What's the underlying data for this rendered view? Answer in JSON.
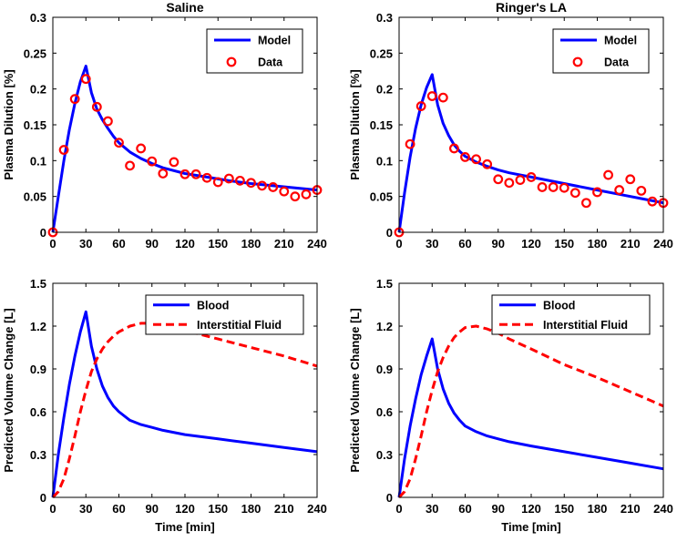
{
  "chart_data": [
    {
      "type": "line",
      "title": "Saline",
      "xlabel": "",
      "ylabel": "Plasma Dilution [%]",
      "xlim": [
        0,
        240
      ],
      "ylim": [
        0,
        0.3
      ],
      "xticks": [
        0,
        30,
        60,
        90,
        120,
        150,
        180,
        210,
        240
      ],
      "xtick_labels": [
        "0",
        "30",
        "60",
        "90",
        "120",
        "150",
        "180",
        "210",
        "240"
      ],
      "yticks": [
        0,
        0.05,
        0.1,
        0.15,
        0.2,
        0.25,
        0.3
      ],
      "ytick_labels": [
        "0",
        "0.05",
        "0.1",
        "0.15",
        "0.2",
        "0.25",
        "0.3"
      ],
      "legend_position": "top-right",
      "series": [
        {
          "name": "Model",
          "style": "line",
          "color": "#0000ff",
          "x": [
            0,
            5,
            10,
            15,
            20,
            25,
            30,
            35,
            40,
            45,
            50,
            55,
            60,
            70,
            80,
            90,
            100,
            120,
            140,
            160,
            180,
            200,
            220,
            240
          ],
          "y": [
            0,
            0.05,
            0.1,
            0.143,
            0.18,
            0.21,
            0.232,
            0.195,
            0.172,
            0.157,
            0.145,
            0.134,
            0.125,
            0.112,
            0.103,
            0.096,
            0.09,
            0.082,
            0.077,
            0.072,
            0.068,
            0.065,
            0.062,
            0.059
          ]
        },
        {
          "name": "Data",
          "style": "markers",
          "color": "#ff0000",
          "x": [
            0,
            10,
            20,
            30,
            40,
            50,
            60,
            70,
            80,
            90,
            100,
            110,
            120,
            130,
            140,
            150,
            160,
            170,
            180,
            190,
            200,
            210,
            220,
            230,
            240
          ],
          "y": [
            0,
            0.115,
            0.186,
            0.214,
            0.175,
            0.155,
            0.125,
            0.093,
            0.117,
            0.099,
            0.082,
            0.098,
            0.081,
            0.081,
            0.076,
            0.07,
            0.075,
            0.072,
            0.069,
            0.065,
            0.063,
            0.057,
            0.05,
            0.053,
            0.059
          ]
        }
      ]
    },
    {
      "type": "line",
      "title": "Ringer's LA",
      "xlabel": "",
      "ylabel": "Plasma Dilution [%]",
      "xlim": [
        0,
        240
      ],
      "ylim": [
        0,
        0.3
      ],
      "xticks": [
        0,
        30,
        60,
        90,
        120,
        150,
        180,
        210,
        240
      ],
      "xtick_labels": [
        "0",
        "30",
        "60",
        "90",
        "120",
        "150",
        "180",
        "210",
        "240"
      ],
      "yticks": [
        0,
        0.05,
        0.1,
        0.15,
        0.2,
        0.25,
        0.3
      ],
      "ytick_labels": [
        "0",
        "0.05",
        "0.1",
        "0.15",
        "0.2",
        "0.25",
        "0.3"
      ],
      "legend_position": "top-right",
      "series": [
        {
          "name": "Model",
          "style": "line",
          "color": "#0000ff",
          "x": [
            0,
            5,
            10,
            15,
            20,
            25,
            30,
            35,
            40,
            45,
            50,
            55,
            60,
            70,
            80,
            90,
            100,
            120,
            140,
            160,
            180,
            200,
            220,
            240
          ],
          "y": [
            0,
            0.055,
            0.105,
            0.145,
            0.178,
            0.202,
            0.22,
            0.178,
            0.152,
            0.135,
            0.122,
            0.113,
            0.106,
            0.098,
            0.092,
            0.087,
            0.083,
            0.077,
            0.071,
            0.065,
            0.059,
            0.053,
            0.047,
            0.041
          ]
        },
        {
          "name": "Data",
          "style": "markers",
          "color": "#ff0000",
          "x": [
            0,
            10,
            20,
            30,
            40,
            50,
            60,
            70,
            80,
            90,
            100,
            110,
            120,
            130,
            140,
            150,
            160,
            170,
            180,
            190,
            200,
            210,
            220,
            230,
            240
          ],
          "y": [
            0,
            0.123,
            0.176,
            0.19,
            0.188,
            0.117,
            0.105,
            0.102,
            0.095,
            0.074,
            0.069,
            0.073,
            0.077,
            0.063,
            0.063,
            0.062,
            0.055,
            0.041,
            0.056,
            0.08,
            0.059,
            0.074,
            0.058,
            0.043,
            0.041
          ]
        }
      ]
    },
    {
      "type": "line",
      "title": "",
      "xlabel": "Time [min]",
      "ylabel": "Predicted Volume Change [L]",
      "xlim": [
        0,
        240
      ],
      "ylim": [
        0,
        1.5
      ],
      "xticks": [
        0,
        30,
        60,
        90,
        120,
        150,
        180,
        210,
        240
      ],
      "xtick_labels": [
        "0",
        "30",
        "60",
        "90",
        "120",
        "150",
        "180",
        "210",
        "240"
      ],
      "yticks": [
        0,
        0.3,
        0.6,
        0.9,
        1.2,
        1.5
      ],
      "ytick_labels": [
        "0",
        "0.3",
        "0.6",
        "0.9",
        "1.2",
        "1.5"
      ],
      "legend_position": "top-right",
      "series": [
        {
          "name": "Blood",
          "style": "line",
          "color": "#0000ff",
          "x": [
            0,
            5,
            10,
            15,
            20,
            25,
            30,
            35,
            40,
            45,
            50,
            55,
            60,
            70,
            80,
            90,
            100,
            120,
            150,
            180,
            210,
            240
          ],
          "y": [
            0,
            0.3,
            0.56,
            0.79,
            0.99,
            1.16,
            1.3,
            1.06,
            0.9,
            0.78,
            0.7,
            0.64,
            0.6,
            0.54,
            0.51,
            0.49,
            0.47,
            0.44,
            0.41,
            0.38,
            0.35,
            0.32
          ]
        },
        {
          "name": "Interstitial Fluid",
          "style": "dashed",
          "color": "#ff0000",
          "x": [
            0,
            5,
            10,
            15,
            20,
            25,
            30,
            35,
            40,
            45,
            50,
            55,
            60,
            70,
            80,
            90,
            100,
            120,
            150,
            180,
            210,
            240
          ],
          "y": [
            0,
            0.04,
            0.13,
            0.27,
            0.43,
            0.6,
            0.75,
            0.88,
            0.97,
            1.04,
            1.09,
            1.13,
            1.16,
            1.2,
            1.22,
            1.22,
            1.21,
            1.17,
            1.11,
            1.05,
            0.99,
            0.92
          ]
        }
      ]
    },
    {
      "type": "line",
      "title": "",
      "xlabel": "Time [min]",
      "ylabel": "Predicted Volume Change [L]",
      "xlim": [
        0,
        240
      ],
      "ylim": [
        0,
        1.5
      ],
      "xticks": [
        0,
        30,
        60,
        90,
        120,
        150,
        180,
        210,
        240
      ],
      "xtick_labels": [
        "0",
        "30",
        "60",
        "90",
        "120",
        "150",
        "180",
        "210",
        "240"
      ],
      "yticks": [
        0,
        0.3,
        0.6,
        0.9,
        1.2,
        1.5
      ],
      "ytick_labels": [
        "0",
        "0.3",
        "0.6",
        "0.9",
        "1.2",
        "1.5"
      ],
      "legend_position": "top-right",
      "series": [
        {
          "name": "Blood",
          "style": "line",
          "color": "#0000ff",
          "x": [
            0,
            5,
            10,
            15,
            20,
            25,
            30,
            35,
            40,
            45,
            50,
            55,
            60,
            70,
            80,
            90,
            100,
            120,
            150,
            180,
            210,
            240
          ],
          "y": [
            0,
            0.27,
            0.5,
            0.69,
            0.86,
            0.99,
            1.11,
            0.9,
            0.76,
            0.66,
            0.59,
            0.54,
            0.5,
            0.46,
            0.43,
            0.41,
            0.39,
            0.36,
            0.32,
            0.28,
            0.24,
            0.2
          ]
        },
        {
          "name": "Interstitial Fluid",
          "style": "dashed",
          "color": "#ff0000",
          "x": [
            0,
            5,
            10,
            15,
            20,
            25,
            30,
            35,
            40,
            45,
            50,
            55,
            60,
            70,
            80,
            90,
            100,
            120,
            150,
            180,
            210,
            240
          ],
          "y": [
            0,
            0.04,
            0.13,
            0.27,
            0.43,
            0.6,
            0.75,
            0.88,
            0.98,
            1.06,
            1.12,
            1.16,
            1.19,
            1.2,
            1.18,
            1.15,
            1.11,
            1.04,
            0.93,
            0.84,
            0.74,
            0.64
          ]
        }
      ]
    }
  ]
}
